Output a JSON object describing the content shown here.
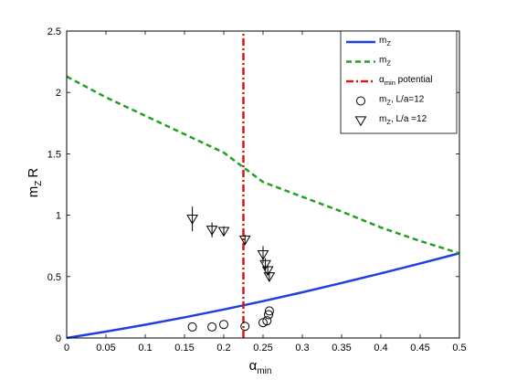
{
  "chart_data": {
    "type": "line",
    "x_axis": {
      "label_base": "α",
      "label_sub": "min",
      "range": [
        0,
        0.5
      ],
      "ticks": [
        0,
        0.05,
        0.1,
        0.15,
        0.2,
        0.25,
        0.3,
        0.35,
        0.4,
        0.45,
        0.5
      ],
      "tick_labels": [
        "0",
        "0.05",
        "0.1",
        "0.15",
        "0.2",
        "0.25",
        "0.3",
        "0.35",
        "0.4",
        "0.45",
        "0.5"
      ]
    },
    "y_axis": {
      "label_m": "m",
      "label_sub": "Z",
      "label_R": "R",
      "range": [
        0,
        2.5
      ],
      "ticks": [
        0,
        0.5,
        1,
        1.5,
        2,
        2.5
      ],
      "tick_labels": [
        "0",
        "0.5",
        "1",
        "1.5",
        "2",
        "2.5"
      ]
    },
    "grid": false,
    "legend_position": "top-right",
    "series": [
      {
        "name_main": "m",
        "name_sub": "Z",
        "name_rest": "",
        "kind": "line",
        "style": "solid",
        "color": "#1f3fe0",
        "x": [
          0,
          0.05,
          0.1,
          0.15,
          0.2,
          0.25,
          0.3,
          0.35,
          0.4,
          0.45,
          0.5
        ],
        "y": [
          0,
          0.052,
          0.108,
          0.168,
          0.232,
          0.3,
          0.372,
          0.448,
          0.526,
          0.607,
          0.69
        ]
      },
      {
        "name_main": "m",
        "name_sub": "Z",
        "name_rest": "",
        "kind": "line",
        "style": "dashed",
        "color": "#22a022",
        "x": [
          0,
          0.05,
          0.1,
          0.15,
          0.2,
          0.25,
          0.3,
          0.35,
          0.4,
          0.45,
          0.5
        ],
        "y": [
          2.13,
          1.96,
          1.81,
          1.66,
          1.51,
          1.27,
          1.15,
          1.03,
          0.9,
          0.79,
          0.69
        ]
      },
      {
        "name_main": "α",
        "name_sub": "min",
        "name_rest": " potential",
        "kind": "vline",
        "style": "dashdot",
        "color": "#e01414",
        "x": [
          0.225,
          0.225
        ],
        "y": [
          0,
          2.5
        ]
      },
      {
        "name_main": "m",
        "name_sub": "Z",
        "name_rest": ", L/a=12",
        "kind": "scatter",
        "marker": "circle",
        "color": "#000000",
        "x": [
          0.16,
          0.185,
          0.2,
          0.227,
          0.25,
          0.255,
          0.257,
          0.258
        ],
        "y": [
          0.09,
          0.09,
          0.11,
          0.095,
          0.125,
          0.14,
          0.19,
          0.22
        ],
        "err": [
          0,
          0,
          0,
          0,
          0,
          0,
          0,
          0
        ]
      },
      {
        "name_main": "m",
        "name_sub": "Z",
        "name_rest": ", L/a =12",
        "kind": "scatter",
        "marker": "triangle-down",
        "color": "#000000",
        "x": [
          0.16,
          0.185,
          0.2,
          0.227,
          0.25,
          0.253,
          0.256,
          0.258
        ],
        "y": [
          0.97,
          0.88,
          0.87,
          0.8,
          0.68,
          0.6,
          0.55,
          0.5
        ],
        "err": [
          0.1,
          0.06,
          0.04,
          0.04,
          0.07,
          0.05,
          0.04,
          0.04
        ]
      }
    ]
  }
}
